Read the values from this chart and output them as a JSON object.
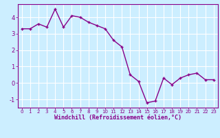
{
  "x": [
    0,
    1,
    2,
    3,
    4,
    5,
    6,
    7,
    8,
    9,
    10,
    11,
    12,
    13,
    14,
    15,
    16,
    17,
    18,
    19,
    20,
    21,
    22,
    23
  ],
  "y": [
    3.3,
    3.3,
    3.6,
    3.4,
    4.5,
    3.4,
    4.1,
    4.0,
    3.7,
    3.5,
    3.3,
    2.6,
    2.2,
    0.5,
    0.1,
    -1.2,
    -1.1,
    0.3,
    -0.1,
    0.3,
    0.5,
    0.6,
    0.2,
    0.2
  ],
  "line_color": "#880088",
  "marker": "+",
  "marker_size": 3.5,
  "linewidth": 1.0,
  "bg_color": "#cceeff",
  "grid_color": "#ffffff",
  "xlabel": "Windchill (Refroidissement éolien,°C)",
  "xlabel_color": "#880088",
  "tick_color": "#880088",
  "axis_color": "#880088",
  "ylim": [
    -1.5,
    4.8
  ],
  "xlim": [
    -0.5,
    23.5
  ],
  "yticks": [
    -1,
    0,
    1,
    2,
    3,
    4
  ],
  "xticks": [
    0,
    1,
    2,
    3,
    4,
    5,
    6,
    7,
    8,
    9,
    10,
    11,
    12,
    13,
    14,
    15,
    16,
    17,
    18,
    19,
    20,
    21,
    22,
    23
  ]
}
